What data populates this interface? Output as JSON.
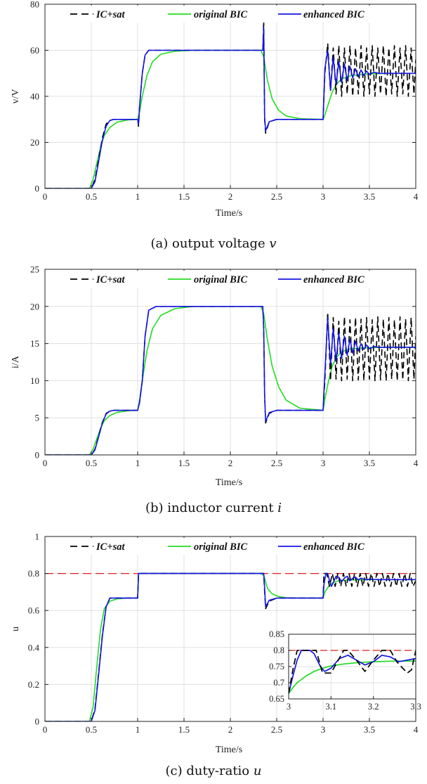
{
  "colors": {
    "ic_sat": "#000000",
    "original_bic": "#22dd22",
    "enhanced_bic": "#1414e6",
    "limit": "#e02020",
    "grid": "#e0e0e0"
  },
  "legend": [
    "IC+sat",
    "original BIC",
    "enhanced BIC"
  ],
  "panels": [
    {
      "caption_text": "(a) output voltage ",
      "caption_var": "v",
      "xlabel": "Time/s",
      "ylabel": "v/V"
    },
    {
      "caption_text": "(b) inductor current ",
      "caption_var": "i",
      "xlabel": "Time/s",
      "ylabel": "i/A"
    },
    {
      "caption_text": "(c) duty-ratio ",
      "caption_var": "u",
      "xlabel": "Time/s",
      "ylabel": "u"
    }
  ],
  "chart_data": [
    {
      "type": "line",
      "xlabel": "Time/s",
      "ylabel": "v/V",
      "xlim": [
        0,
        4
      ],
      "ylim": [
        0,
        80
      ],
      "xticks": [
        "0",
        "0.5",
        "1",
        "1.5",
        "2",
        "2.5",
        "3",
        "3.5",
        "4"
      ],
      "yticks": [
        "0",
        "20",
        "40",
        "60",
        "80"
      ],
      "grid": true,
      "legend_position": "top",
      "series": [
        {
          "name": "IC+sat",
          "style": "dashed",
          "x": [
            0,
            0.5,
            0.54,
            0.58,
            0.62,
            0.66,
            0.7,
            0.74,
            1.0,
            1.01,
            1.02,
            1.05,
            1.08,
            1.12,
            1.2,
            2.35,
            2.36,
            2.37,
            2.38,
            2.42,
            2.5,
            3.0,
            3.02,
            3.05,
            3.08,
            3.11,
            3.14,
            3.17,
            3.2,
            3.23,
            3.26,
            3.29,
            3.32,
            3.35,
            3.38,
            3.41,
            3.44,
            3.47,
            3.5,
            3.53,
            3.56,
            3.59,
            3.62,
            3.65,
            3.68,
            3.71,
            3.74,
            3.77,
            3.8,
            3.83,
            3.86,
            3.89,
            3.92,
            3.95,
            3.98,
            4.0
          ],
          "y": [
            0,
            0,
            4,
            13,
            22,
            28,
            29.5,
            30,
            30,
            27,
            35,
            50,
            58,
            60,
            60,
            60,
            73,
            30,
            24,
            29,
            30,
            30,
            50,
            63,
            42,
            61,
            41,
            62,
            40,
            61,
            41,
            62,
            40,
            61,
            41,
            62,
            40,
            61,
            41,
            62,
            40,
            61,
            41,
            62,
            40,
            61,
            41,
            62,
            40,
            61,
            41,
            62,
            40,
            61,
            41,
            56
          ]
        },
        {
          "name": "original BIC",
          "style": "solid",
          "x": [
            0,
            0.48,
            0.52,
            0.56,
            0.6,
            0.64,
            0.7,
            0.78,
            0.9,
            1.0,
            1.02,
            1.05,
            1.1,
            1.16,
            1.25,
            1.4,
            1.6,
            2.33,
            2.36,
            2.4,
            2.45,
            2.52,
            2.6,
            2.75,
            3.0,
            3.02,
            3.06,
            3.1,
            3.15,
            3.2,
            3.3,
            3.5,
            3.7,
            4.0
          ],
          "y": [
            0,
            0,
            4,
            11,
            18,
            23,
            26.5,
            28.8,
            29.8,
            30,
            33,
            40,
            49,
            55,
            58.3,
            59.6,
            60,
            60,
            57,
            47,
            39,
            34,
            31.5,
            30.3,
            30,
            32,
            37,
            42,
            45.5,
            47.5,
            49,
            49.8,
            50,
            50
          ]
        },
        {
          "name": "enhanced BIC",
          "style": "solid",
          "x": [
            0,
            0.5,
            0.54,
            0.58,
            0.62,
            0.66,
            0.7,
            0.74,
            1.0,
            1.01,
            1.02,
            1.05,
            1.08,
            1.12,
            1.2,
            2.35,
            2.36,
            2.37,
            2.38,
            2.42,
            2.5,
            3.0,
            3.02,
            3.05,
            3.08,
            3.11,
            3.14,
            3.17,
            3.2,
            3.23,
            3.26,
            3.29,
            3.32,
            3.35,
            3.38,
            3.41,
            3.44,
            3.47,
            3.5,
            3.55,
            3.6,
            3.7,
            3.8,
            4.0
          ],
          "y": [
            0,
            0,
            3,
            12,
            21,
            27,
            29.5,
            30,
            30,
            28,
            35,
            50,
            58,
            60,
            60,
            60,
            70,
            31,
            25,
            29,
            30,
            30,
            52,
            60,
            43,
            57,
            45,
            55,
            46,
            54,
            47,
            53,
            48,
            52,
            48.5,
            51.5,
            49,
            51,
            49.5,
            50.5,
            50,
            50,
            50,
            50
          ]
        }
      ]
    },
    {
      "type": "line",
      "xlabel": "Time/s",
      "ylabel": "i/A",
      "xlim": [
        0,
        4
      ],
      "ylim": [
        0,
        25
      ],
      "xticks": [
        "0",
        "0.5",
        "1",
        "1.5",
        "2",
        "2.5",
        "3",
        "3.5",
        "4"
      ],
      "yticks": [
        "0",
        "5",
        "10",
        "15",
        "20",
        "25"
      ],
      "grid": true,
      "legend_position": "top",
      "series": [
        {
          "name": "IC+sat",
          "style": "dashed",
          "x": [
            0,
            0.5,
            0.54,
            0.58,
            0.62,
            0.66,
            0.7,
            0.74,
            1.0,
            1.02,
            1.05,
            1.08,
            1.12,
            1.2,
            2.35,
            2.36,
            2.37,
            2.38,
            2.42,
            2.5,
            3.0,
            3.02,
            3.05,
            3.08,
            3.11,
            3.14,
            3.17,
            3.2,
            3.23,
            3.26,
            3.29,
            3.32,
            3.35,
            3.38,
            3.41,
            3.44,
            3.47,
            3.5,
            3.53,
            3.56,
            3.59,
            3.62,
            3.65,
            3.68,
            3.71,
            3.74,
            3.77,
            3.8,
            3.83,
            3.86,
            3.89,
            3.92,
            3.95,
            3.98,
            4.0
          ],
          "y": [
            0,
            0,
            0.8,
            2.6,
            4.4,
            5.6,
            5.9,
            6,
            6,
            7,
            10,
            16,
            19.5,
            20,
            20,
            17,
            8,
            4.3,
            5.6,
            6,
            6,
            10,
            19.2,
            10,
            18.5,
            10.2,
            18,
            10,
            18.6,
            10.2,
            18.2,
            10,
            18.5,
            10.1,
            18.3,
            10,
            18.5,
            10.2,
            18.2,
            10,
            18.6,
            10.1,
            18.3,
            10,
            18.5,
            10.2,
            18.2,
            10,
            18.6,
            10.1,
            18.3,
            10,
            18.5,
            10.2,
            16
          ]
        },
        {
          "name": "original BIC",
          "style": "solid",
          "x": [
            0,
            0.48,
            0.52,
            0.56,
            0.6,
            0.64,
            0.7,
            0.78,
            0.9,
            1.0,
            1.02,
            1.05,
            1.1,
            1.16,
            1.25,
            1.4,
            1.6,
            2.33,
            2.36,
            2.4,
            2.45,
            2.52,
            2.6,
            2.75,
            3.0,
            3.02,
            3.06,
            3.1,
            3.15,
            3.2,
            3.3,
            3.5,
            3.7,
            4.0
          ],
          "y": [
            0,
            0,
            0.8,
            2.2,
            3.6,
            4.6,
            5.3,
            5.75,
            5.95,
            6,
            7.3,
            10,
            14,
            17,
            18.8,
            19.7,
            20,
            20,
            19,
            15.5,
            12,
            9.2,
            7.4,
            6.3,
            6,
            7.5,
            10,
            12,
            13.2,
            13.9,
            14.3,
            14.45,
            14.5,
            14.5
          ]
        },
        {
          "name": "enhanced BIC",
          "style": "solid",
          "x": [
            0,
            0.5,
            0.54,
            0.58,
            0.62,
            0.66,
            0.7,
            0.74,
            1.0,
            1.02,
            1.05,
            1.08,
            1.12,
            1.2,
            2.35,
            2.36,
            2.37,
            2.38,
            2.42,
            2.5,
            3.0,
            3.02,
            3.05,
            3.08,
            3.11,
            3.14,
            3.17,
            3.2,
            3.23,
            3.26,
            3.29,
            3.32,
            3.35,
            3.38,
            3.41,
            3.44,
            3.47,
            3.5,
            3.55,
            3.6,
            3.7,
            3.8,
            4.0
          ],
          "y": [
            0,
            0,
            0.7,
            2.5,
            4.3,
            5.5,
            5.9,
            6,
            6,
            7,
            10,
            16,
            19.5,
            20,
            20,
            17,
            8,
            4.5,
            5.7,
            6,
            6,
            11,
            18.5,
            12.2,
            17,
            12.6,
            16.4,
            13,
            16,
            13.4,
            15.6,
            13.7,
            15.3,
            14,
            15,
            14.2,
            14.8,
            14.3,
            14.6,
            14.5,
            14.5,
            14.5,
            14.5
          ]
        }
      ]
    },
    {
      "type": "line",
      "xlabel": "Time/s",
      "ylabel": "u",
      "xlim": [
        0,
        4
      ],
      "ylim": [
        0,
        1
      ],
      "xticks": [
        "0",
        "0.5",
        "1",
        "1.5",
        "2",
        "2.5",
        "3",
        "3.5",
        "4"
      ],
      "yticks": [
        "0",
        "0.2",
        "0.4",
        "0.6",
        "0.8",
        "1"
      ],
      "grid": true,
      "legend_position": "top",
      "limit": 0.8,
      "series": [
        {
          "name": "IC+sat",
          "style": "dashed",
          "x": [
            0,
            0.5,
            0.54,
            0.58,
            0.62,
            0.66,
            0.7,
            1.0,
            1.01,
            1.03,
            2.35,
            2.36,
            2.37,
            2.38,
            2.42,
            2.5,
            3.0,
            3.01,
            3.04,
            3.07,
            3.1,
            3.13,
            3.16,
            3.19,
            3.22,
            3.25,
            3.28,
            3.31,
            3.34,
            3.37,
            3.4,
            3.43,
            3.46,
            3.49,
            3.52,
            3.55,
            3.58,
            3.61,
            3.64,
            3.67,
            3.7,
            3.73,
            3.76,
            3.79,
            3.82,
            3.85,
            3.88,
            3.91,
            3.94,
            3.97,
            4.0
          ],
          "y": [
            0,
            0,
            0.07,
            0.27,
            0.47,
            0.62,
            0.667,
            0.667,
            0.8,
            0.8,
            0.8,
            0.8,
            0.7,
            0.61,
            0.65,
            0.667,
            0.667,
            0.8,
            0.8,
            0.73,
            0.8,
            0.73,
            0.8,
            0.73,
            0.8,
            0.73,
            0.8,
            0.73,
            0.8,
            0.73,
            0.8,
            0.73,
            0.8,
            0.73,
            0.8,
            0.73,
            0.8,
            0.73,
            0.8,
            0.73,
            0.8,
            0.73,
            0.8,
            0.73,
            0.8,
            0.73,
            0.8,
            0.73,
            0.8,
            0.73,
            0.76
          ]
        },
        {
          "name": "original BIC",
          "style": "solid",
          "x": [
            0,
            0.48,
            0.52,
            0.56,
            0.6,
            0.64,
            0.7,
            0.78,
            0.9,
            1.0,
            1.01,
            1.03,
            2.33,
            2.36,
            2.4,
            2.45,
            2.52,
            2.6,
            2.75,
            3.0,
            3.02,
            3.06,
            3.1,
            3.15,
            3.2,
            3.3,
            3.5,
            3.7,
            4.0
          ],
          "y": [
            0,
            0,
            0.08,
            0.3,
            0.5,
            0.61,
            0.65,
            0.663,
            0.667,
            0.667,
            0.8,
            0.8,
            0.8,
            0.79,
            0.72,
            0.69,
            0.675,
            0.669,
            0.667,
            0.667,
            0.7,
            0.73,
            0.75,
            0.758,
            0.762,
            0.765,
            0.767,
            0.767,
            0.767
          ]
        },
        {
          "name": "enhanced BIC",
          "style": "solid",
          "x": [
            0,
            0.5,
            0.54,
            0.58,
            0.62,
            0.66,
            0.7,
            1.0,
            1.01,
            1.03,
            2.35,
            2.36,
            2.37,
            2.38,
            2.42,
            2.5,
            3.0,
            3.01,
            3.03,
            3.05,
            3.07,
            3.09,
            3.11,
            3.14,
            3.17,
            3.2,
            3.23,
            3.26,
            3.29,
            3.32,
            3.35,
            3.38,
            3.41,
            3.44,
            3.47,
            3.5,
            3.55,
            3.6,
            3.65,
            3.7,
            3.8,
            3.9,
            4.0
          ],
          "y": [
            0,
            0,
            0.06,
            0.26,
            0.46,
            0.62,
            0.667,
            0.667,
            0.8,
            0.8,
            0.8,
            0.8,
            0.72,
            0.62,
            0.655,
            0.667,
            0.667,
            0.74,
            0.8,
            0.8,
            0.76,
            0.73,
            0.75,
            0.785,
            0.78,
            0.755,
            0.775,
            0.785,
            0.76,
            0.775,
            0.78,
            0.765,
            0.775,
            0.77,
            0.765,
            0.77,
            0.768,
            0.767,
            0.767,
            0.767,
            0.767,
            0.767,
            0.767
          ]
        }
      ],
      "inset": {
        "xlim": [
          3,
          3.3
        ],
        "ylim": [
          0.65,
          0.85
        ],
        "xticks": [
          "3",
          "3.1",
          "3.2",
          "3.3"
        ],
        "yticks": [
          "0.65",
          "0.7",
          "0.75",
          "0.8",
          "0.85"
        ],
        "limit": 0.8,
        "series": [
          {
            "name": "IC+sat",
            "style": "dashed",
            "x": [
              3.0,
              3.01,
              3.02,
              3.05,
              3.065,
              3.08,
              3.1,
              3.13,
              3.14,
              3.16,
              3.18,
              3.2,
              3.22,
              3.24,
              3.255,
              3.28,
              3.29,
              3.3
            ],
            "y": [
              0.667,
              0.74,
              0.8,
              0.8,
              0.8,
              0.73,
              0.73,
              0.8,
              0.8,
              0.77,
              0.735,
              0.77,
              0.8,
              0.8,
              0.765,
              0.73,
              0.74,
              0.8
            ]
          },
          {
            "name": "original BIC",
            "style": "solid",
            "x": [
              3.0,
              3.01,
              3.02,
              3.04,
              3.06,
              3.08,
              3.1,
              3.13,
              3.16,
              3.2,
              3.25,
              3.3
            ],
            "y": [
              0.667,
              0.685,
              0.7,
              0.72,
              0.735,
              0.745,
              0.752,
              0.758,
              0.762,
              0.765,
              0.767,
              0.767
            ]
          },
          {
            "name": "enhanced BIC",
            "style": "solid",
            "x": [
              3.0,
              3.01,
              3.02,
              3.03,
              3.05,
              3.06,
              3.075,
              3.085,
              3.1,
              3.12,
              3.14,
              3.16,
              3.18,
              3.2,
              3.22,
              3.24,
              3.26,
              3.28,
              3.3
            ],
            "y": [
              0.667,
              0.72,
              0.77,
              0.8,
              0.8,
              0.79,
              0.75,
              0.735,
              0.745,
              0.775,
              0.785,
              0.77,
              0.755,
              0.765,
              0.785,
              0.78,
              0.765,
              0.77,
              0.775
            ]
          }
        ]
      }
    }
  ]
}
